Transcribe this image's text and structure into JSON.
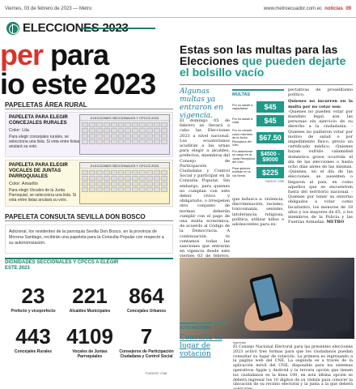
{
  "topbar": {
    "left": "Viernes, 03 de febrero de 2023 — Metro",
    "right_site": "www.metroecuador.com.ec",
    "right_section": "noticias",
    "right_page": "09"
  },
  "brand": {
    "label": "ELECCIONES 2023"
  },
  "headline": {
    "line1_prefix": "",
    "line1_highlight": "per",
    "line1_rest": " para",
    "line2": "io este 2023"
  },
  "rural": {
    "section": "PAPELETAS ÁREA RURAL",
    "card1": {
      "title": "PAPELETA PARA ELEGIR CONCEJALES RURALES",
      "color": "Color: Lila",
      "desc": "Para elegir concejales rurales, se selecciona una lista. Si vota entre listas anulará su voto."
    },
    "card2": {
      "title": "PAPELETA PARA ELEGIR VOCALES DE JUNTAS PARROQUIALES",
      "color": "Color: Amarillo",
      "desc": "Para elegir Vocales de la Junta Parroquial, se selecciona una lista. Si vota entre listas anulará su voto."
    },
    "ballot1_hdr": "ELECCIONES SECCIONALES Y CPCCS 2023",
    "ballot2_hdr": "ELECCIONES SECCIONALES Y CPCCS 2023"
  },
  "sevilla": {
    "section": "PAPELETA CONSULTA SEVILLA DON BOSCO",
    "text": "Adicional, los residentes de la parroquia Sevilla Don Bosco, en la provincia de Morona Santiago, recibirán una papeleta para la Consulta Popular con respecto a su autonomización."
  },
  "stats": {
    "title": "DIGNIDADES SECCIONALES Y CPCCS A ELEGIR ESTE 2023",
    "items": [
      {
        "num": "23",
        "label": "Prefecto y viceprefecto"
      },
      {
        "num": "221",
        "label": "Alcaldes Municipales"
      },
      {
        "num": "864",
        "label": "Concejales Urbanos"
      },
      {
        "num": "443",
        "label": "Concejales Rurales"
      },
      {
        "num": "4109",
        "label": "Vocales de Juntas Parroquiales"
      },
      {
        "num": "7",
        "label": "Consejeros de Participación Ciudadana y Control Social"
      }
    ],
    "source": "FUENTE: CNE"
  },
  "right": {
    "headline_a": "Estas son las multas para las  Elecciones ",
    "headline_b": "que pueden dejarte el bolsillo vacío",
    "kicker": "Algunas multas ya entraron en vigencia.",
    "col1": "El domingo 05 de febrero se llevará a cabo las Elecciones 2023 a nivel nacional. Los ecuatorianos acudirán a las urnas para elegir a alcaldes, prefectos, miembros del Consejo de Participación Ciudadana y Control Social y participar en la Consulta Popular. Sin embargo, para quienes no cumplan con este deber cívico y obligatorio, o irrespeten otro conjunto de normas deberán cumplir con el pago de una multa económica, de acuerdo al Código de la Democracia. A continuación, te contamos todas las sanciones que entrarán en vigencia desde este viernes 03 de febrero. De igual manera, existen sanciones para publicidad",
    "col2": "que induzca a: violencia, discriminación, racismo, toxicomanía, sexismo, intolerancia religiosa, política, utilizar niños o adolescentes para ex-",
    "col3": "pectativas de proselitismo político.",
    "col3_sub": "Quienes no incurren en la multa por no votar son:",
    "col3_rest": "-Quienes no pueden votar por mandato legal, son las personas sin ejercicio de su derecho a la ciudadanía. -Quienes no pudieron votar por motivo de salud o por impedimento físico, previo un certificado médico. -Quienes hayan sufrido calamidad doméstica grave ocurrida el día de las elecciones o hasta ocho días antes de las mismas. -Quienes, en el día de las elecciones, se ausenten o llegaron al país, en como aquellos que se encuentren fuera del territorio nacional. -Quienes por tener su entorno obligados a votar como facultativo, los menores de 18 años y los mayores de 65, o los miembros de la Policía y las Fuerzas Armadas.",
    "col3_end": "METRO",
    "fines_label": "MULTAS",
    "fines": [
      {
        "desc": "Por no asistir a capacitarse",
        "value": "$45"
      },
      {
        "desc": "Por no asistir a votar",
        "value": "$45"
      },
      {
        "desc": "Por no cumplir como miembro de la Junta Receptora del Voto",
        "value": "$67.50"
      },
      {
        "desc": "Por abandonar su cargo en la Junta Receptora del Voto",
        "value": "$4500 - $9000"
      },
      {
        "desc": "Para quienes exhiban en la vía Secta",
        "value": "$225"
      }
    ],
    "fines_source": "FUENTE: CNE",
    "photo_caption_title": "FOTO HISTORIA",
    "photo_caption_big": "Consulta tu lugar de votación",
    "photo_credit": "agencias",
    "photo_text": "El Consejo Nacional Electoral para las presentes elecciones 2023 activó tres formas para que los ciudadanos puedan consultar su lugar de votación. La primera es ingresando a la página web del CNE. La segunda es a través de la aplicación móvil del CNE, disponible para los sistemas operativos Apple y Android y la tercera opción que tienen los ciudadanos es la línea 100, en esta última opción se deberá ingresar los 10 dígitos de su cédula para conocer la ubicación de su recinto electoral y la junta a la que deberá acercarse."
  }
}
